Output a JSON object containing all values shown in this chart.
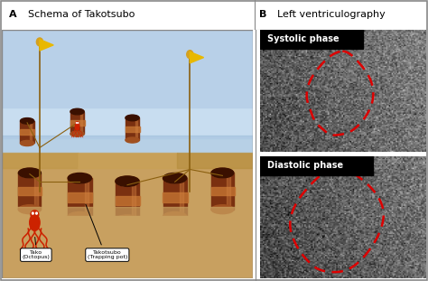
{
  "title_a": "A  Schema of Takotsubo",
  "title_b": "B  Left ventriculography",
  "label_systolic": "Systolic phase",
  "label_diastolic": "Diastolic phase",
  "sky_top": "#cde3ef",
  "sky_mid": "#b8d2e5",
  "water_color": "#a8c8e0",
  "sand_color": "#c8a060",
  "sand_surf": "#b89050",
  "pot_body": "#7a3010",
  "pot_rim": "#c07030",
  "pot_band": "#a05020",
  "pot_inner": "#3a1000",
  "pot_highlight": "#d08040",
  "flag_gold": "#e8b800",
  "flag_pole": "#8B6010",
  "ball_gold": "#d4a020",
  "red_octopus": "#cc2200",
  "red_outline": "#dd0000",
  "border_color": "#888888",
  "white": "#ffffff",
  "black": "#000000",
  "xray_bg": "#404040",
  "header_bg": "#f8f8f8"
}
